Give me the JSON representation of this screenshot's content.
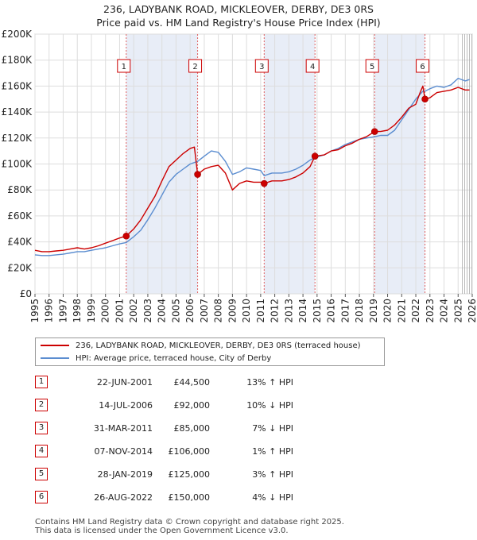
{
  "chart_data": {
    "type": "line",
    "title_line1": "236, LADYBANK ROAD, MICKLEOVER, DERBY, DE3 0RS",
    "title_line2": "Price paid vs. HM Land Registry's House Price Index (HPI)",
    "xlim": [
      1995,
      2026
    ],
    "ylim": [
      0,
      200000
    ],
    "y_ticks": [
      {
        "value": 0,
        "label": "£0"
      },
      {
        "value": 20000,
        "label": "£20K"
      },
      {
        "value": 40000,
        "label": "£40K"
      },
      {
        "value": 60000,
        "label": "£60K"
      },
      {
        "value": 80000,
        "label": "£80K"
      },
      {
        "value": 100000,
        "label": "£100K"
      },
      {
        "value": 120000,
        "label": "£120K"
      },
      {
        "value": 140000,
        "label": "£140K"
      },
      {
        "value": 160000,
        "label": "£160K"
      },
      {
        "value": 180000,
        "label": "£180K"
      },
      {
        "value": 200000,
        "label": "£200K"
      }
    ],
    "x_ticks": [
      "1995",
      "1996",
      "1997",
      "1998",
      "1999",
      "2000",
      "2001",
      "2002",
      "2003",
      "2004",
      "2005",
      "2006",
      "2007",
      "2008",
      "2009",
      "2010",
      "2011",
      "2012",
      "2013",
      "2014",
      "2015",
      "2016",
      "2017",
      "2018",
      "2019",
      "2020",
      "2021",
      "2022",
      "2023",
      "2024",
      "2025",
      "2026"
    ],
    "forecast_start": 2025.3,
    "series": [
      {
        "name": "236, LADYBANK ROAD, MICKLEOVER, DERBY, DE3 0RS (terraced house)",
        "color": "#cc0000",
        "points": [
          [
            1995.0,
            33500
          ],
          [
            1995.5,
            32500
          ],
          [
            1996.0,
            32500
          ],
          [
            1996.5,
            33000
          ],
          [
            1997.0,
            33500
          ],
          [
            1997.5,
            34500
          ],
          [
            1998.0,
            35500
          ],
          [
            1998.5,
            34500
          ],
          [
            1999.0,
            35500
          ],
          [
            1999.5,
            37000
          ],
          [
            2000.0,
            39000
          ],
          [
            2000.5,
            41000
          ],
          [
            2001.0,
            43000
          ],
          [
            2001.47,
            44500
          ],
          [
            2002.0,
            50000
          ],
          [
            2002.5,
            57000
          ],
          [
            2003.0,
            66000
          ],
          [
            2003.5,
            75000
          ],
          [
            2004.0,
            87000
          ],
          [
            2004.5,
            98000
          ],
          [
            2005.0,
            103000
          ],
          [
            2005.5,
            108000
          ],
          [
            2006.0,
            112000
          ],
          [
            2006.3,
            113000
          ],
          [
            2006.53,
            92000
          ],
          [
            2007.0,
            96000
          ],
          [
            2007.5,
            98000
          ],
          [
            2008.0,
            99000
          ],
          [
            2008.5,
            93000
          ],
          [
            2009.0,
            80000
          ],
          [
            2009.5,
            85000
          ],
          [
            2010.0,
            87000
          ],
          [
            2010.5,
            86000
          ],
          [
            2011.0,
            86000
          ],
          [
            2011.25,
            85000
          ],
          [
            2011.8,
            87000
          ],
          [
            2012.5,
            87000
          ],
          [
            2013.0,
            88000
          ],
          [
            2013.5,
            90000
          ],
          [
            2014.0,
            93000
          ],
          [
            2014.5,
            98000
          ],
          [
            2014.85,
            106000
          ],
          [
            2015.5,
            107000
          ],
          [
            2016.0,
            110000
          ],
          [
            2016.5,
            111000
          ],
          [
            2017.0,
            114000
          ],
          [
            2017.5,
            116000
          ],
          [
            2018.0,
            119000
          ],
          [
            2018.5,
            121000
          ],
          [
            2019.08,
            125000
          ],
          [
            2019.5,
            125000
          ],
          [
            2020.0,
            126000
          ],
          [
            2020.5,
            130000
          ],
          [
            2021.0,
            136000
          ],
          [
            2021.5,
            143000
          ],
          [
            2022.0,
            146000
          ],
          [
            2022.3,
            155000
          ],
          [
            2022.5,
            160000
          ],
          [
            2022.65,
            150000
          ],
          [
            2023.0,
            151000
          ],
          [
            2023.5,
            155000
          ],
          [
            2024.0,
            156000
          ],
          [
            2024.5,
            157000
          ],
          [
            2025.0,
            159000
          ],
          [
            2025.5,
            157000
          ],
          [
            2025.8,
            157000
          ]
        ]
      },
      {
        "name": "HPI: Average price, terraced house, City of Derby",
        "color": "#5b8dd0",
        "points": [
          [
            1995.0,
            30000
          ],
          [
            1995.5,
            29500
          ],
          [
            1996.0,
            29500
          ],
          [
            1996.5,
            30000
          ],
          [
            1997.0,
            30500
          ],
          [
            1997.5,
            31500
          ],
          [
            1998.0,
            32500
          ],
          [
            1998.5,
            32500
          ],
          [
            1999.0,
            33500
          ],
          [
            1999.5,
            34500
          ],
          [
            2000.0,
            35500
          ],
          [
            2000.5,
            37000
          ],
          [
            2001.0,
            38500
          ],
          [
            2001.47,
            39500
          ],
          [
            2002.0,
            44000
          ],
          [
            2002.5,
            49000
          ],
          [
            2003.0,
            57000
          ],
          [
            2003.5,
            66000
          ],
          [
            2004.0,
            76000
          ],
          [
            2004.5,
            86000
          ],
          [
            2005.0,
            92000
          ],
          [
            2005.5,
            96000
          ],
          [
            2006.0,
            100000
          ],
          [
            2006.53,
            102000
          ],
          [
            2007.0,
            106000
          ],
          [
            2007.5,
            110000
          ],
          [
            2008.0,
            109000
          ],
          [
            2008.5,
            102000
          ],
          [
            2009.0,
            92000
          ],
          [
            2009.5,
            94000
          ],
          [
            2010.0,
            97000
          ],
          [
            2010.5,
            96000
          ],
          [
            2011.0,
            95000
          ],
          [
            2011.25,
            91000
          ],
          [
            2011.8,
            93000
          ],
          [
            2012.5,
            93000
          ],
          [
            2013.0,
            94000
          ],
          [
            2013.5,
            96000
          ],
          [
            2014.0,
            99000
          ],
          [
            2014.5,
            103000
          ],
          [
            2014.85,
            105000
          ],
          [
            2015.5,
            107000
          ],
          [
            2016.0,
            110000
          ],
          [
            2016.5,
            112000
          ],
          [
            2017.0,
            115000
          ],
          [
            2017.5,
            117000
          ],
          [
            2018.0,
            119000
          ],
          [
            2018.5,
            120000
          ],
          [
            2019.08,
            121000
          ],
          [
            2019.5,
            122000
          ],
          [
            2020.0,
            122000
          ],
          [
            2020.5,
            126000
          ],
          [
            2021.0,
            134000
          ],
          [
            2021.5,
            142000
          ],
          [
            2022.0,
            150000
          ],
          [
            2022.5,
            156000
          ],
          [
            2022.65,
            156000
          ],
          [
            2023.0,
            158000
          ],
          [
            2023.5,
            160000
          ],
          [
            2024.0,
            159000
          ],
          [
            2024.5,
            161000
          ],
          [
            2025.0,
            166000
          ],
          [
            2025.5,
            164000
          ],
          [
            2025.8,
            165000
          ]
        ]
      }
    ],
    "sales": [
      {
        "label": "1",
        "x": 2001.47,
        "y": 44500,
        "date": "22-JUN-2001",
        "price": "£44,500",
        "hpi": "13% ↑ HPI"
      },
      {
        "label": "2",
        "x": 2006.53,
        "y": 92000,
        "date": "14-JUL-2006",
        "price": "£92,000",
        "hpi": "10% ↓ HPI"
      },
      {
        "label": "3",
        "x": 2011.25,
        "y": 85000,
        "date": "31-MAR-2011",
        "price": "£85,000",
        "hpi": "7% ↓ HPI"
      },
      {
        "label": "4",
        "x": 2014.85,
        "y": 106000,
        "date": "07-NOV-2014",
        "price": "£106,000",
        "hpi": "1% ↑ HPI"
      },
      {
        "label": "5",
        "x": 2019.08,
        "y": 125000,
        "date": "28-JAN-2019",
        "price": "£125,000",
        "hpi": "3% ↑ HPI"
      },
      {
        "label": "6",
        "x": 2022.65,
        "y": 150000,
        "date": "26-AUG-2022",
        "price": "£150,000",
        "hpi": "4% ↓ HPI"
      }
    ],
    "colors": {
      "grid": "#dddddd",
      "shade": "#e8edf7",
      "sale_line": "#e06060",
      "forecast_hatch": "#aaaaaa"
    }
  },
  "legend": {
    "property_label": "236, LADYBANK ROAD, MICKLEOVER, DERBY, DE3 0RS (terraced house)",
    "hpi_label": "HPI: Average price, terraced house, City of Derby"
  },
  "footer": {
    "line1": "Contains HM Land Registry data © Crown copyright and database right 2025.",
    "line2": "This data is licensed under the Open Government Licence v3.0."
  }
}
